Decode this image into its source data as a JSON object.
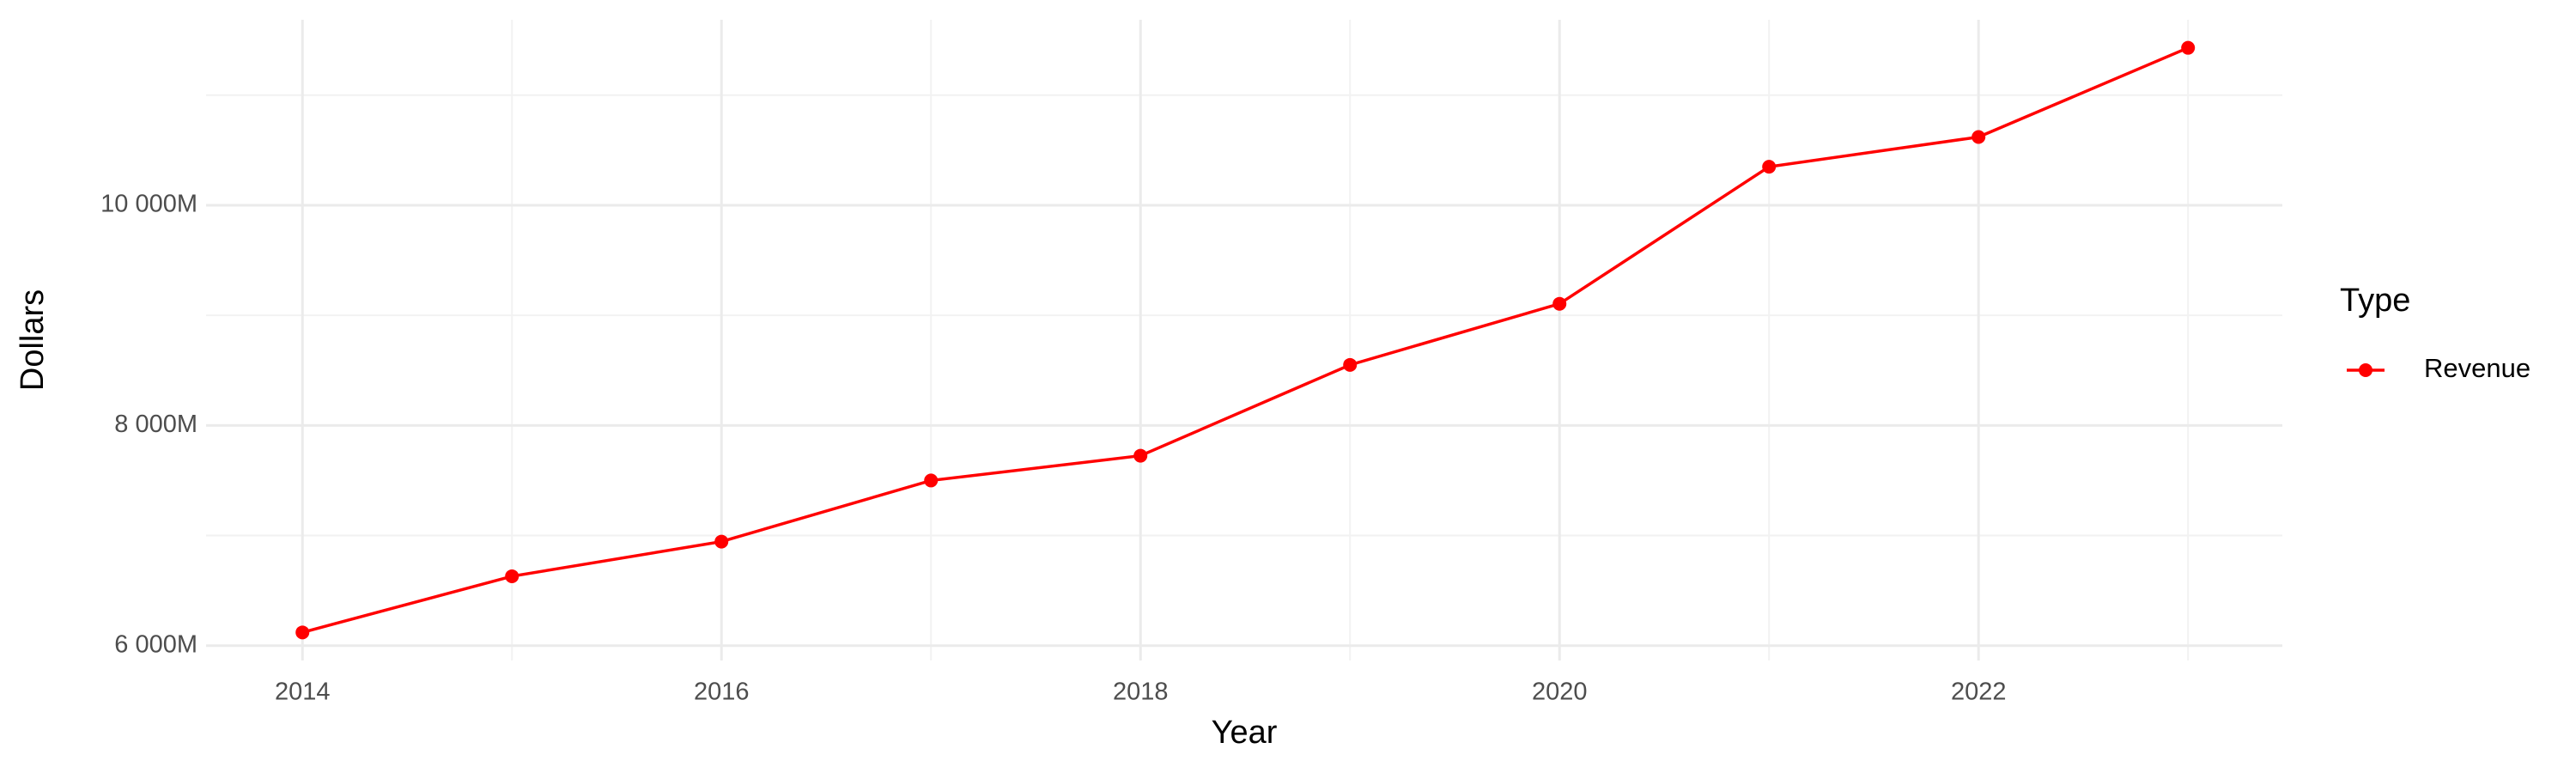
{
  "chart_data": {
    "type": "line",
    "x_label": "Year",
    "y_label": "Dollars",
    "legend_title": "Type",
    "x": [
      2014,
      2015,
      2016,
      2017,
      2018,
      2019,
      2020,
      2021,
      2022,
      2023
    ],
    "series": [
      {
        "name": "Revenue",
        "color": "#ff0000",
        "values": [
          6120,
          6630,
          6945,
          7500,
          7725,
          8550,
          9105,
          10350,
          10620,
          11430
        ]
      }
    ],
    "xlim": [
      2013.54,
      2023.45
    ],
    "xticks": [
      2014,
      2016,
      2018,
      2020,
      2022
    ],
    "ylim": [
      5865,
      11685
    ],
    "yticks": [
      {
        "value": 6000,
        "label": "6 000M"
      },
      {
        "value": 8000,
        "label": "8 000M"
      },
      {
        "value": 10000,
        "label": "10 000M"
      }
    ],
    "grid": true,
    "legend": "right"
  }
}
